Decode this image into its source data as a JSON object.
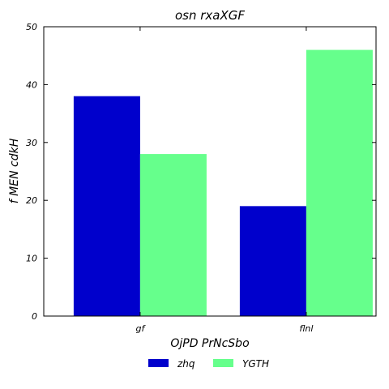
{
  "chart_data": {
    "type": "bar",
    "title": "osn rxaXGF",
    "xlabel": "OjPD PrNcSbo",
    "ylabel": "f MEN cdkH",
    "categories": [
      "gf",
      "flnl"
    ],
    "series": [
      {
        "name": "zhq",
        "values": [
          38,
          19
        ],
        "color": "#0000cc"
      },
      {
        "name": "YGTH",
        "values": [
          28,
          46
        ],
        "color": "#66ff8c"
      }
    ],
    "ylim": [
      0,
      50
    ],
    "yticks": [
      0,
      10,
      20,
      30,
      40,
      50
    ],
    "grid": false,
    "legend_position": "bottom-center"
  }
}
